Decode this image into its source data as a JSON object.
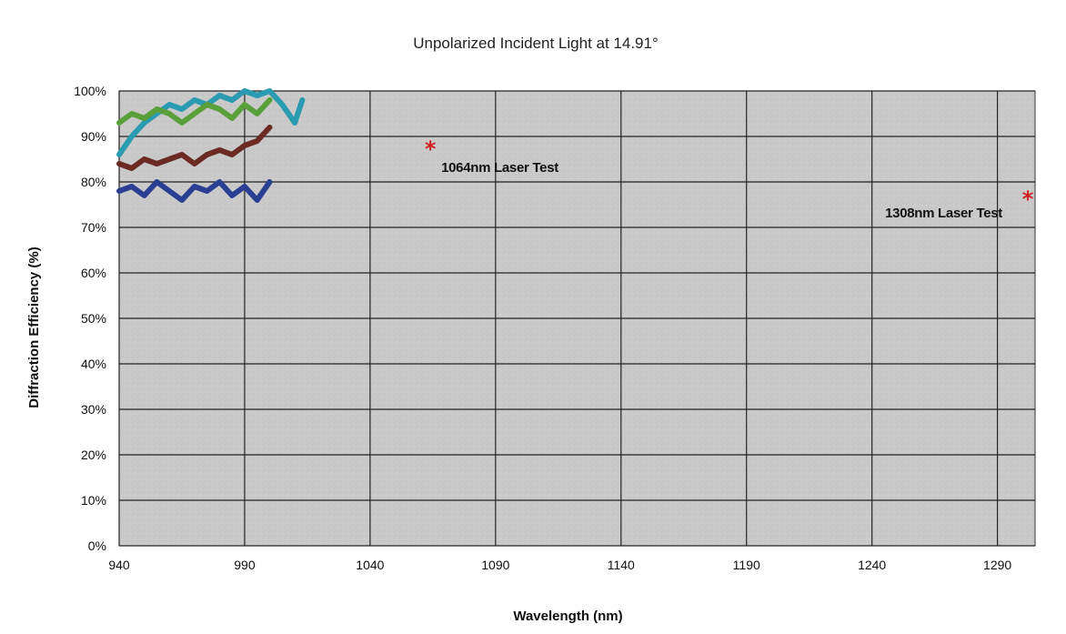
{
  "chart_data": {
    "type": "line",
    "title": "Unpolarized Incident Light at 14.91°",
    "xlabel": "Wavelength (nm)",
    "ylabel": "Diffraction Efficiency (%)",
    "xlim": [
      940,
      1305
    ],
    "ylim": [
      0,
      100
    ],
    "x_ticks": [
      940,
      990,
      1040,
      1090,
      1140,
      1190,
      1240,
      1290
    ],
    "x_tick_labels": [
      "940",
      "990",
      "1040",
      "1090",
      "1140",
      "1190",
      "1240",
      "1290"
    ],
    "y_ticks": [
      0,
      10,
      20,
      30,
      40,
      50,
      60,
      70,
      80,
      90,
      100
    ],
    "y_tick_labels": [
      "0%",
      "10%",
      "20%",
      "30%",
      "40%",
      "50%",
      "60%",
      "70%",
      "80%",
      "90%",
      "100%"
    ],
    "grid": true,
    "series": [
      {
        "color": "#2a9bb0",
        "x": [
          940,
          945,
          950,
          955,
          960,
          965,
          970,
          975,
          980,
          985,
          990,
          995,
          1000,
          1005,
          1010,
          1013
        ],
        "y": [
          86,
          90,
          93,
          95,
          97,
          96,
          98,
          97,
          99,
          98,
          100,
          99,
          100,
          97,
          93,
          98
        ]
      },
      {
        "color": "#6b2a24",
        "x": [
          940,
          945,
          950,
          955,
          960,
          965,
          970,
          975,
          980,
          985,
          990,
          995,
          1000
        ],
        "y": [
          84,
          83,
          85,
          84,
          85,
          86,
          84,
          86,
          87,
          86,
          88,
          89,
          92
        ]
      },
      {
        "color": "#5aa03a",
        "x": [
          940,
          945,
          950,
          955,
          960,
          965,
          970,
          975,
          980,
          985,
          990,
          995,
          1000
        ],
        "y": [
          93,
          95,
          94,
          96,
          95,
          93,
          95,
          97,
          96,
          94,
          97,
          95,
          98
        ]
      },
      {
        "color": "#2b3f92",
        "x": [
          940,
          945,
          950,
          955,
          960,
          965,
          970,
          975,
          980,
          985,
          990,
          995,
          1000
        ],
        "y": [
          78,
          79,
          77,
          80,
          78,
          76,
          79,
          78,
          80,
          77,
          79,
          76,
          80
        ]
      }
    ],
    "annotations": [
      {
        "text": "1064nm Laser Test",
        "marker": "*",
        "marker_color": "#d42020",
        "x": 1064,
        "y": 86
      },
      {
        "text": "1308nm Laser Test",
        "marker": "*",
        "marker_color": "#d42020",
        "x": 1308,
        "y": 75
      }
    ]
  }
}
